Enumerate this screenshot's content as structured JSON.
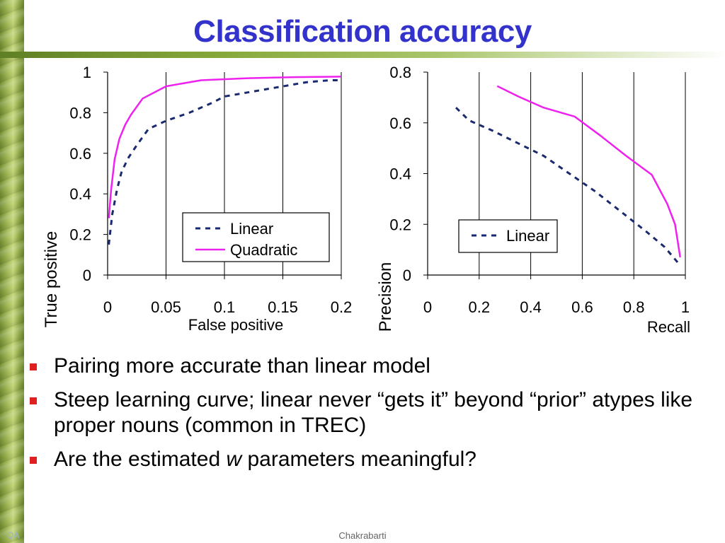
{
  "slide": {
    "title": "Classification accuracy",
    "footer_left": "QA",
    "footer_center": "Chakrabarti"
  },
  "bullets": [
    {
      "text": "Pairing more accurate than linear model"
    },
    {
      "text": "Steep learning curve; linear never “gets it” beyond “prior” atypes like proper nouns (common in TREC)"
    },
    {
      "pre": "Are the estimated ",
      "emph": "w",
      "post": " parameters meaningful?"
    }
  ],
  "colors": {
    "linear": "#1a2a6e",
    "quadratic": "#ee22ee",
    "title": "#3333cc",
    "bullet": "#e02020"
  },
  "chart_data": [
    {
      "type": "line",
      "xlabel": "False positive",
      "ylabel": "True positive",
      "xlim": [
        0,
        0.2
      ],
      "ylim": [
        0,
        1
      ],
      "xticks": [
        0,
        0.05,
        0.1,
        0.15,
        0.2
      ],
      "xtick_labels": [
        "0",
        "0.05",
        "0.1",
        "0.15",
        "0.2"
      ],
      "yticks": [
        0,
        0.2,
        0.4,
        0.6,
        0.8,
        1
      ],
      "ytick_labels": [
        "0",
        "0.2",
        "0.4",
        "0.6",
        "0.8",
        "1"
      ],
      "grid": "vertical",
      "legend_position": "bottom-right",
      "series": [
        {
          "name": "Linear",
          "style": "dashed",
          "x": [
            0.001,
            0.004,
            0.008,
            0.012,
            0.018,
            0.025,
            0.035,
            0.05,
            0.07,
            0.09,
            0.1,
            0.12,
            0.15,
            0.17,
            0.19,
            0.2
          ],
          "y": [
            0.15,
            0.3,
            0.42,
            0.51,
            0.58,
            0.64,
            0.72,
            0.76,
            0.8,
            0.85,
            0.88,
            0.9,
            0.93,
            0.95,
            0.96,
            0.96
          ]
        },
        {
          "name": "Quadratic",
          "style": "solid",
          "x": [
            0.001,
            0.003,
            0.006,
            0.01,
            0.015,
            0.02,
            0.03,
            0.05,
            0.08,
            0.12,
            0.16,
            0.2
          ],
          "y": [
            0.28,
            0.42,
            0.57,
            0.67,
            0.74,
            0.79,
            0.87,
            0.93,
            0.96,
            0.97,
            0.975,
            0.978
          ]
        }
      ]
    },
    {
      "type": "line",
      "xlabel": "Recall",
      "ylabel": "Precision",
      "xlim": [
        0,
        1
      ],
      "ylim": [
        0,
        0.8
      ],
      "xticks": [
        0,
        0.2,
        0.4,
        0.6,
        0.8,
        1
      ],
      "xtick_labels": [
        "0",
        "0.2",
        "0.4",
        "0.6",
        "0.8",
        "1"
      ],
      "yticks": [
        0,
        0.2,
        0.4,
        0.6,
        0.8
      ],
      "ytick_labels": [
        "0",
        "0.2",
        "0.4",
        "0.6",
        "0.8"
      ],
      "grid": "vertical",
      "legend_position": "middle-left",
      "series": [
        {
          "name": "Linear",
          "style": "dashed",
          "x": [
            0.11,
            0.16,
            0.25,
            0.35,
            0.45,
            0.55,
            0.65,
            0.75,
            0.85,
            0.92,
            0.97,
            0.98
          ],
          "y": [
            0.66,
            0.61,
            0.57,
            0.52,
            0.47,
            0.4,
            0.33,
            0.25,
            0.17,
            0.11,
            0.05,
            0.04
          ]
        },
        {
          "name": "",
          "style": "solid",
          "x": [
            0.27,
            0.35,
            0.45,
            0.57,
            0.67,
            0.77,
            0.87,
            0.93,
            0.96,
            0.98
          ],
          "y": [
            0.745,
            0.705,
            0.66,
            0.625,
            0.55,
            0.47,
            0.395,
            0.28,
            0.2,
            0.07
          ]
        }
      ]
    }
  ]
}
